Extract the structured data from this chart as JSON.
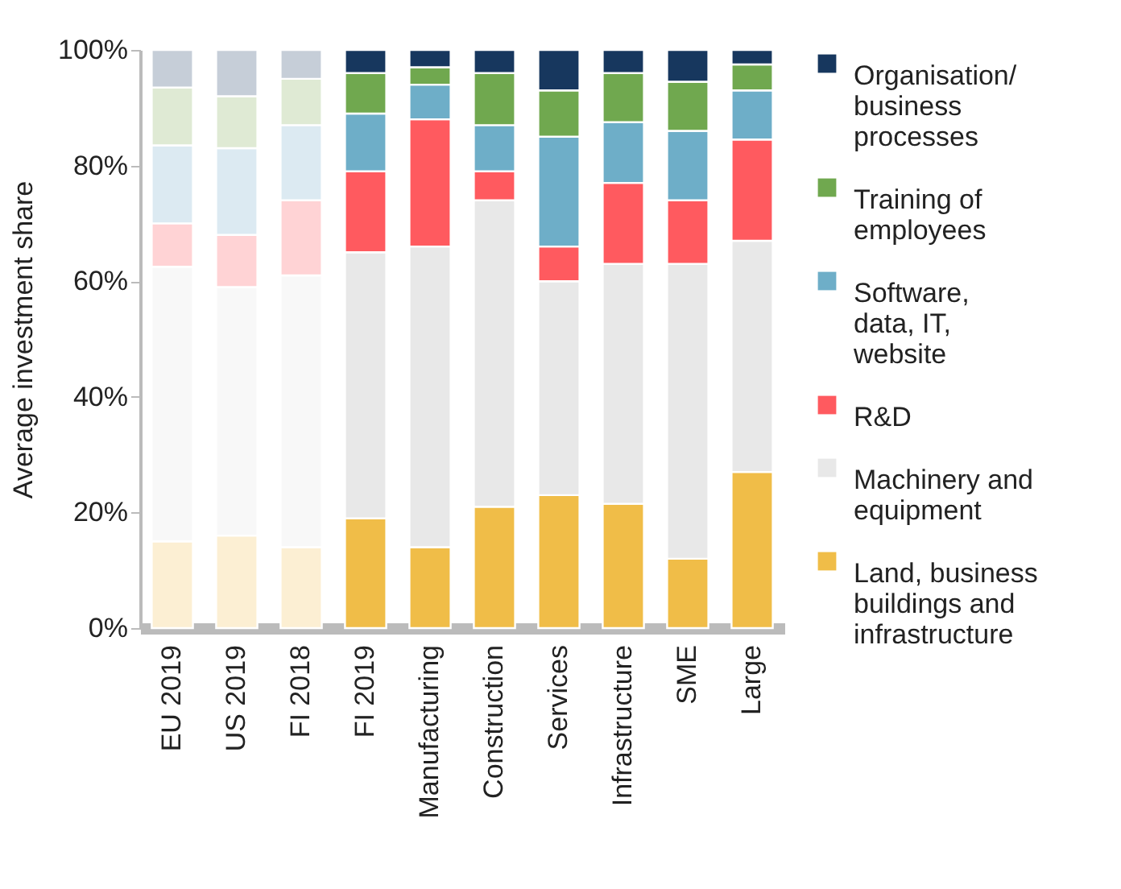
{
  "chart_data": {
    "type": "bar",
    "stacked": true,
    "ylabel": "Average investment share",
    "categories": [
      "EU 2019",
      "US 2019",
      "FI 2018",
      "FI 2019",
      "Manufacturing",
      "Construction",
      "Services",
      "Infrastructure",
      "SME",
      "Large"
    ],
    "series": [
      {
        "name": "Land, business buildings and infrastructure",
        "color": "#f0bd48",
        "colors": [
          "#fcefd3",
          "#fcefd3",
          "#fcefd3",
          "#f0bd48",
          "#f0bd48",
          "#f0bd48",
          "#f0bd48",
          "#f0bd48",
          "#f0bd48",
          "#f0bd48"
        ],
        "values": [
          15,
          16,
          14,
          19,
          14,
          21,
          23,
          21.5,
          12,
          27
        ]
      },
      {
        "name": "Machinery and equipment",
        "color": "#e8e8e8",
        "colors": [
          "#f8f8f8",
          "#f8f8f8",
          "#f8f8f8",
          "#e8e8e8",
          "#e8e8e8",
          "#e8e8e8",
          "#e8e8e8",
          "#e8e8e8",
          "#e8e8e8",
          "#e8e8e8"
        ],
        "values": [
          47.5,
          43,
          47,
          46,
          52,
          53,
          37,
          41.5,
          51,
          40
        ]
      },
      {
        "name": "R&D",
        "color": "#ff5a5f",
        "colors": [
          "#ffd3d5",
          "#ffd3d5",
          "#ffd3d5",
          "#ff5a5f",
          "#ff5a5f",
          "#ff5a5f",
          "#ff5a5f",
          "#ff5a5f",
          "#ff5a5f",
          "#ff5a5f"
        ],
        "values": [
          7.5,
          9,
          13,
          14,
          22,
          5,
          6,
          14,
          11,
          17.5
        ]
      },
      {
        "name": "Software, data, IT, website",
        "color": "#6eaec8",
        "colors": [
          "#dceaf2",
          "#dceaf2",
          "#dceaf2",
          "#6eaec8",
          "#6eaec8",
          "#6eaec8",
          "#6eaec8",
          "#6eaec8",
          "#6eaec8",
          "#6eaec8"
        ],
        "values": [
          13.5,
          15,
          13,
          10,
          6,
          8,
          19,
          10.5,
          12,
          8.5
        ]
      },
      {
        "name": "Training of employees",
        "color": "#70a84f",
        "colors": [
          "#dfead4",
          "#dfead4",
          "#dfead4",
          "#70a84f",
          "#70a84f",
          "#70a84f",
          "#70a84f",
          "#70a84f",
          "#70a84f",
          "#70a84f"
        ],
        "values": [
          10,
          9,
          8,
          7,
          3,
          9,
          8,
          8.5,
          8.5,
          4.5
        ]
      },
      {
        "name": "Organisation/ business processes",
        "color": "#17375e",
        "colors": [
          "#c6ced8",
          "#c6ced8",
          "#c6ced8",
          "#17375e",
          "#17375e",
          "#17375e",
          "#17375e",
          "#17375e",
          "#17375e",
          "#17375e"
        ],
        "values": [
          6.5,
          8,
          5,
          4,
          3,
          4,
          7,
          4,
          5.5,
          2.5
        ]
      }
    ],
    "ylim": [
      0,
      100
    ],
    "yticks": [
      {
        "value": 0,
        "label": "0%"
      },
      {
        "value": 20,
        "label": "20%"
      },
      {
        "value": 40,
        "label": "40%"
      },
      {
        "value": 60,
        "label": "60%"
      },
      {
        "value": 80,
        "label": "80%"
      },
      {
        "value": 100,
        "label": "100%"
      }
    ],
    "legend": "right"
  }
}
